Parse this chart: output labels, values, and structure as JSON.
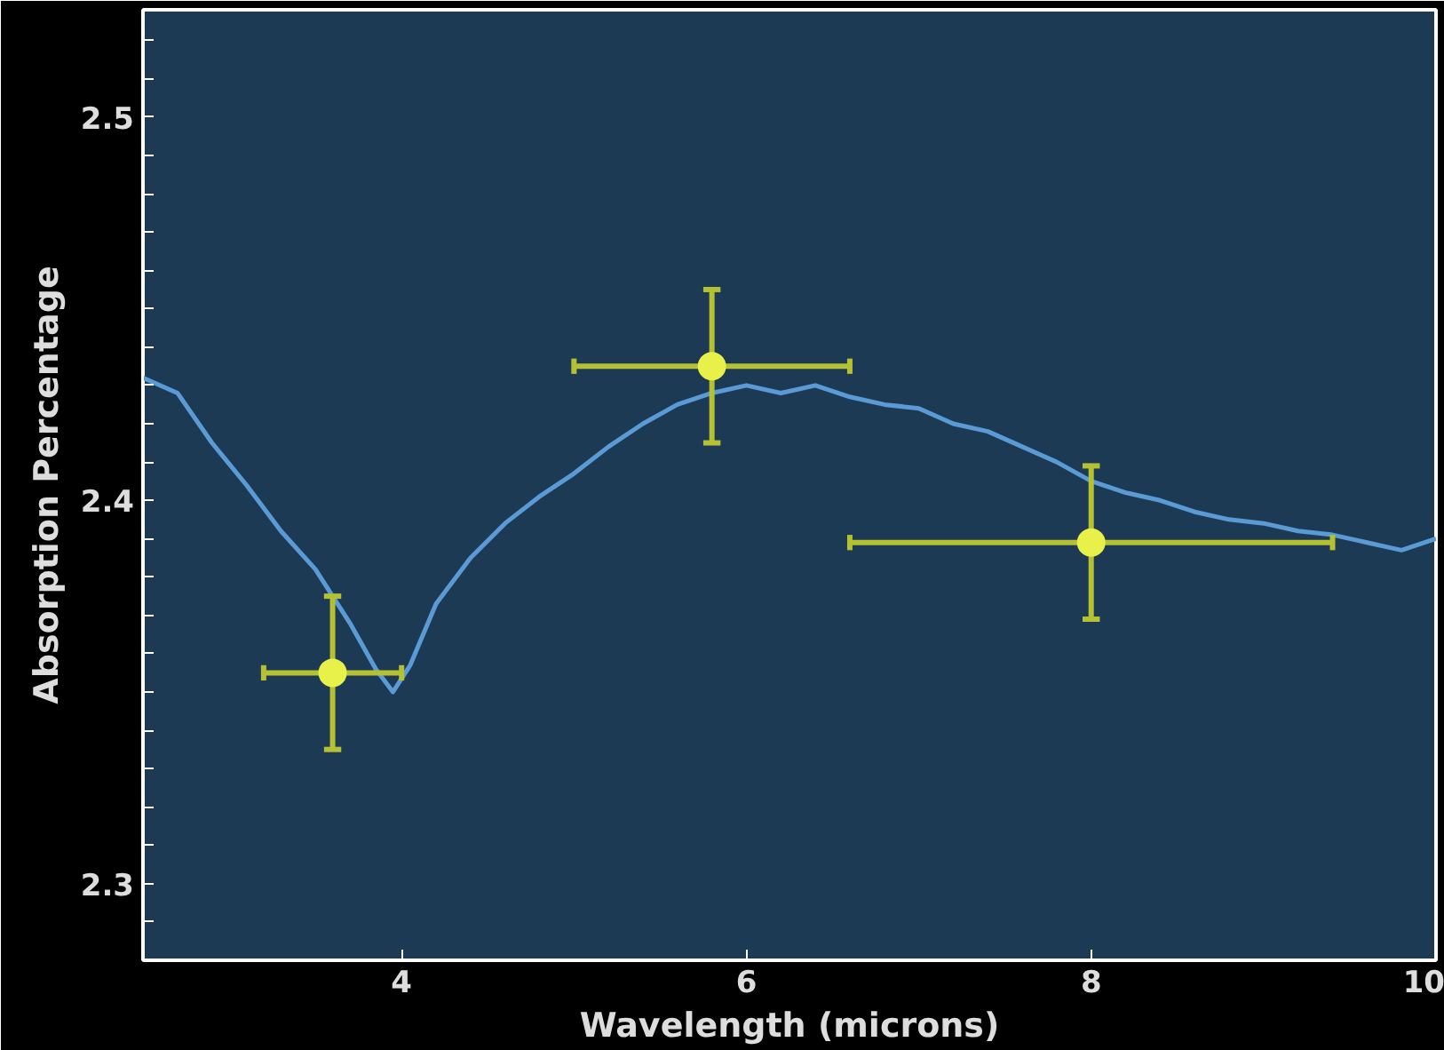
{
  "chart_data": {
    "type": "line",
    "xlabel": "Wavelength (microns)",
    "ylabel": "Absorption Percentage",
    "xlim": [
      2.5,
      10
    ],
    "ylim": [
      2.28,
      2.528
    ],
    "xticks": [
      4,
      6,
      8,
      10
    ],
    "yticks": [
      {
        "value": 2.29,
        "label": null
      },
      2.3,
      {
        "value": 2.31,
        "label": null
      },
      {
        "value": 2.32,
        "label": null
      },
      {
        "value": 2.33,
        "label": null
      },
      {
        "value": 2.34,
        "label": null
      },
      {
        "value": 2.35,
        "label": null
      },
      {
        "value": 2.36,
        "label": null
      },
      {
        "value": 2.37,
        "label": null
      },
      {
        "value": 2.38,
        "label": null
      },
      {
        "value": 2.39,
        "label": null
      },
      2.4,
      {
        "value": 2.41,
        "label": null
      },
      {
        "value": 2.42,
        "label": null
      },
      {
        "value": 2.43,
        "label": null
      },
      {
        "value": 2.44,
        "label": null
      },
      {
        "value": 2.45,
        "label": null
      },
      {
        "value": 2.46,
        "label": null
      },
      {
        "value": 2.47,
        "label": null
      },
      {
        "value": 2.48,
        "label": null
      },
      {
        "value": 2.49,
        "label": null
      },
      2.5,
      {
        "value": 2.51,
        "label": null
      },
      {
        "value": 2.52,
        "label": null
      }
    ],
    "grid": false,
    "series": [
      {
        "color": "#5b9bd5",
        "x": [
          2.5,
          2.7,
          2.9,
          3.1,
          3.3,
          3.5,
          3.7,
          3.85,
          3.95,
          4.05,
          4.2,
          4.4,
          4.6,
          4.8,
          5.0,
          5.2,
          5.4,
          5.6,
          5.8,
          6.0,
          6.2,
          6.4,
          6.6,
          6.8,
          7.0,
          7.2,
          7.4,
          7.6,
          7.8,
          8.0,
          8.2,
          8.4,
          8.6,
          8.8,
          9.0,
          9.2,
          9.4,
          9.6,
          9.8,
          10.0
        ],
        "values": [
          2.432,
          2.428,
          2.415,
          2.404,
          2.392,
          2.382,
          2.368,
          2.356,
          2.35,
          2.357,
          2.373,
          2.385,
          2.394,
          2.401,
          2.407,
          2.414,
          2.42,
          2.425,
          2.428,
          2.43,
          2.428,
          2.43,
          2.427,
          2.425,
          2.424,
          2.42,
          2.418,
          2.414,
          2.41,
          2.405,
          2.402,
          2.4,
          2.397,
          2.395,
          2.394,
          2.392,
          2.391,
          2.389,
          2.387,
          2.39
        ]
      },
      {
        "type": "scatter",
        "color": "#e8f04a",
        "marker": "circle",
        "x": [
          3.6,
          5.8,
          8.0
        ],
        "values": [
          2.355,
          2.435,
          2.389
        ],
        "errors": [
          0.02,
          0.02,
          0.02
        ],
        "xerrors": [
          [
            3.2,
            4.0
          ],
          [
            5.0,
            6.6
          ],
          [
            6.6,
            9.4
          ]
        ]
      }
    ]
  }
}
